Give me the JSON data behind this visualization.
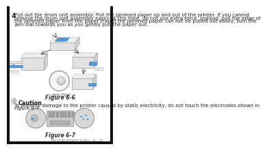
{
  "bg_color": "#ffffff",
  "border_color": "#000000",
  "step_number": "4",
  "step_text": "Pull out the drum unit assembly. Pull the jammed paper up and out of the printer. If you cannot remove the drum unit assembly easily at this time, do not use extra force. Instead, pull the edge of the jammed paper from the paper tray. If the jammed paper can not be pulled out easily, turn the jam dial towards you as you gently pull the paper out.",
  "figure6_label": "Figure 6-6",
  "jam_dial_label": "Jam Dial",
  "caution_title": "Caution",
  "caution_text": "To prevent damage to the printer caused by static electricity, do not touch the electrodes shown in Figure 6-7.",
  "figure7_label": "Figure 6-7",
  "footer_text": "TROUBLESHOOTING  6 - 8",
  "text_color": "#222222",
  "gray_text": "#666666",
  "step_text_fontsize": 5.2,
  "caption_fontsize": 5.5,
  "caution_title_fontsize": 5.8,
  "caution_text_fontsize": 5.2,
  "footer_fontsize": 4.2,
  "printer_body_color": "#e0e0e0",
  "printer_edge_color": "#888888",
  "blue_color": "#5599dd",
  "white": "#ffffff"
}
